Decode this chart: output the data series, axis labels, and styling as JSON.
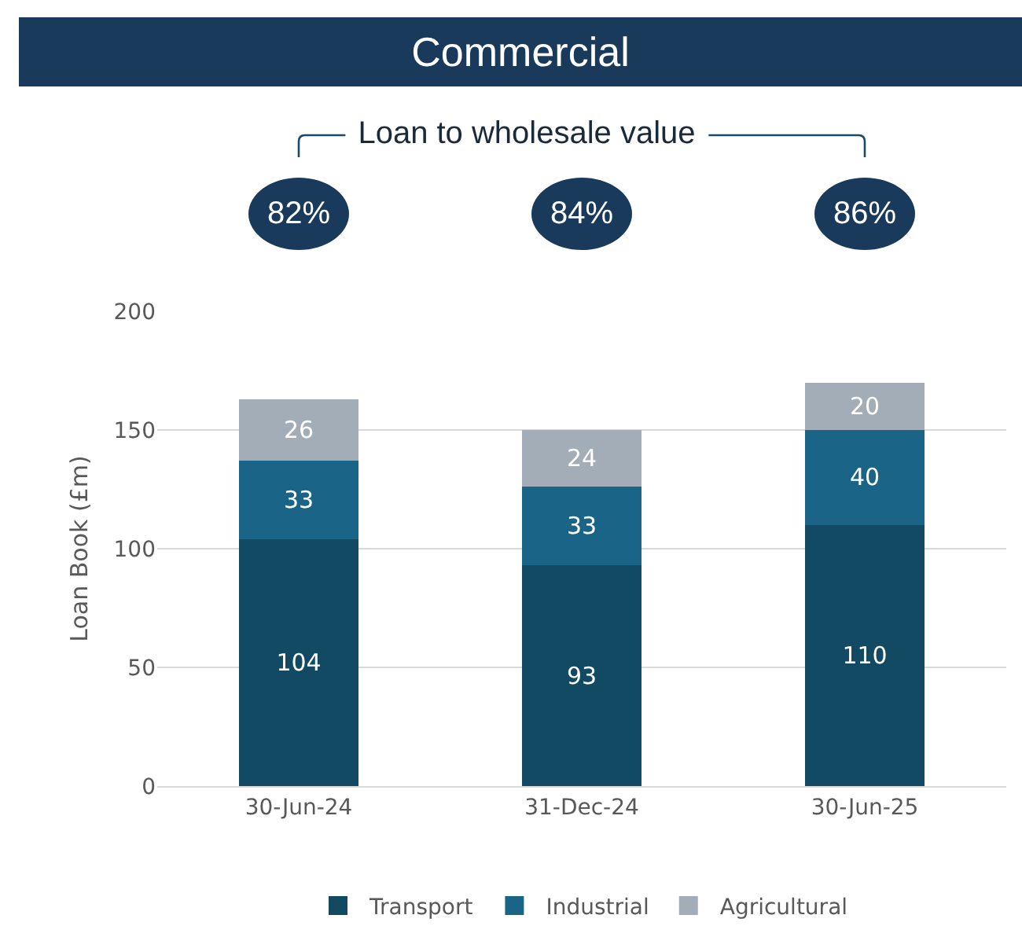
{
  "chart_data": {
    "type": "bar",
    "title": "Commercial",
    "ylabel": "Loan Book (£m)",
    "categories": [
      "30-Jun-24",
      "31-Dec-24",
      "30-Jun-25"
    ],
    "series": [
      {
        "name": "Transport",
        "color": "#134a63",
        "values": [
          104,
          93,
          110
        ]
      },
      {
        "name": "Industrial",
        "color": "#1a6587",
        "values": [
          33,
          33,
          40
        ]
      },
      {
        "name": "Agricultural",
        "color": "#a3adb8",
        "values": [
          26,
          24,
          20
        ]
      }
    ],
    "stacked": true,
    "data_labels": true,
    "ylim": [
      0,
      200
    ],
    "yticks": [
      0,
      50,
      100,
      150,
      200
    ],
    "grid": "y",
    "legend": "bottom",
    "annotations": [
      "Loan to wholesale value",
      "82%",
      "84%",
      "86%"
    ]
  }
}
